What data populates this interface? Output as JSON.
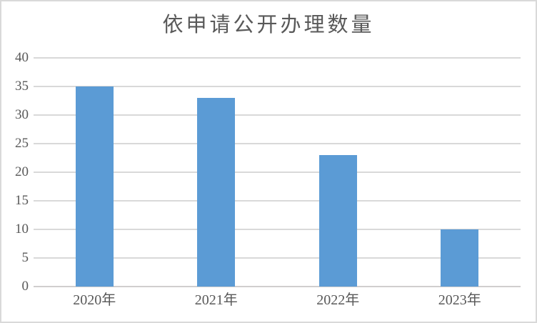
{
  "chart_data": {
    "type": "bar",
    "title": "依申请公开办理数量",
    "categories": [
      "2020年",
      "2021年",
      "2022年",
      "2023年"
    ],
    "values": [
      35,
      33,
      23,
      10
    ],
    "xlabel": "",
    "ylabel": "",
    "ylim": [
      0,
      40
    ],
    "ytick_step": 5,
    "yticks": [
      0,
      5,
      10,
      15,
      20,
      25,
      30,
      35,
      40
    ],
    "grid": true,
    "legend_position": "none",
    "colors": {
      "bar": "#5B9BD5",
      "gridline": "#D9D9D9",
      "axis_line": "#D0CECE",
      "text": "#595959",
      "frame_border": "#D9D9D9",
      "background": "#FFFFFF"
    }
  }
}
